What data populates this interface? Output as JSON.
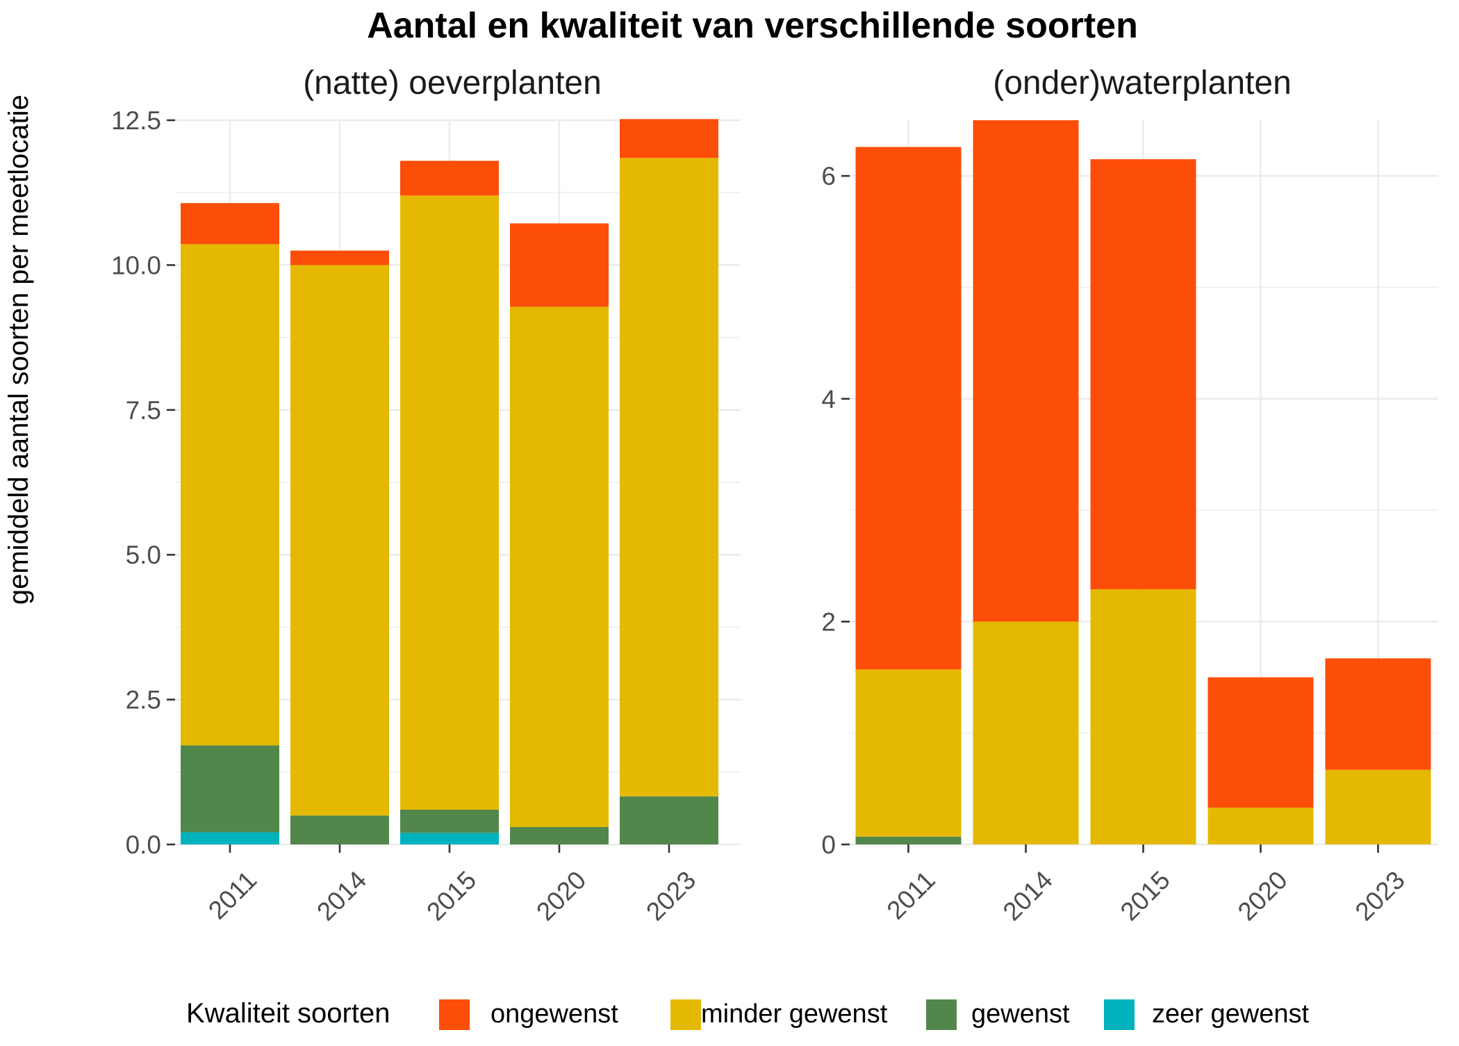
{
  "chart_data": {
    "type": "bar",
    "stacked": true,
    "title": "Aantal en kwaliteit van verschillende soorten",
    "ylabel": "gemiddeld aantal soorten per meetlocatie",
    "categories": [
      "2011",
      "2014",
      "2015",
      "2020",
      "2023"
    ],
    "legend": {
      "title": "Kwaliteit soorten",
      "position": "bottom",
      "items": [
        {
          "label": "ongewenst",
          "color": "#fc4e08"
        },
        {
          "label": "minder gewenst",
          "color": "#e5b902"
        },
        {
          "label": "gewenst",
          "color": "#52874c"
        },
        {
          "label": "zeer gewenst",
          "color": "#00b2bd"
        }
      ]
    },
    "grid": true,
    "panels": [
      {
        "title": "(natte) oeverplanten",
        "ylim": [
          0,
          12.5
        ],
        "yticks": [
          "0.0",
          "2.5",
          "5.0",
          "7.5",
          "10.0",
          "12.5"
        ],
        "series": [
          {
            "name": "zeer gewenst",
            "values": [
              0.21,
              0,
              0.2,
              0,
              0
            ]
          },
          {
            "name": "gewenst",
            "values": [
              1.5,
              0.5,
              0.4,
              0.3,
              0.83
            ]
          },
          {
            "name": "minder gewenst",
            "values": [
              8.65,
              9.5,
              10.6,
              8.98,
              11.02
            ]
          },
          {
            "name": "ongewenst",
            "values": [
              0.71,
              0.25,
              0.6,
              1.44,
              0.67
            ]
          }
        ]
      },
      {
        "title": "(onder)waterplanten",
        "ylim": [
          0,
          6.5
        ],
        "yticks": [
          "0",
          "2",
          "4",
          "6"
        ],
        "series": [
          {
            "name": "zeer gewenst",
            "values": [
              0,
              0,
              0,
              0,
              0
            ]
          },
          {
            "name": "gewenst",
            "values": [
              0.07,
              0,
              0,
              0,
              0
            ]
          },
          {
            "name": "minder gewenst",
            "values": [
              1.5,
              2.0,
              2.29,
              0.33,
              0.67
            ]
          },
          {
            "name": "ongewenst",
            "values": [
              4.69,
              4.5,
              3.86,
              1.17,
              1.0
            ]
          }
        ]
      }
    ]
  }
}
